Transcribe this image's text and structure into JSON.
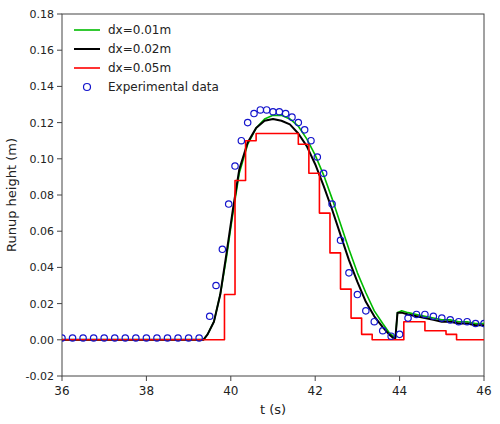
{
  "chart_data": {
    "type": "line",
    "xlabel": "t (s)",
    "ylabel": "Runup height (m)",
    "xlim": [
      36,
      46
    ],
    "ylim": [
      -0.02,
      0.18
    ],
    "xticks": [
      36,
      38,
      40,
      42,
      44,
      46
    ],
    "yticks": [
      -0.02,
      {
        "value": 0.0,
        "label": "0.00"
      },
      0.02,
      0.04,
      0.06,
      0.08,
      {
        "value": 0.1,
        "label": "0.10"
      },
      0.12,
      0.14,
      0.16,
      0.18
    ],
    "grid": false,
    "legend": "upper left",
    "series": [
      {
        "name": "dx=0.01m",
        "type": "line",
        "color": "#00bb00",
        "x": [
          36.0,
          39.35,
          39.45,
          39.6,
          39.75,
          39.9,
          40.05,
          40.2,
          40.4,
          40.6,
          40.8,
          41.0,
          41.2,
          41.4,
          41.6,
          41.8,
          42.0,
          42.2,
          42.4,
          42.6,
          42.8,
          43.0,
          43.2,
          43.4,
          43.6,
          43.75,
          43.85,
          43.9,
          43.95,
          44.05,
          44.2,
          44.4,
          44.6,
          44.8,
          45.0,
          45.2,
          45.4,
          45.6,
          45.8,
          46.0
        ],
        "values": [
          0.0,
          0.0,
          0.003,
          0.01,
          0.025,
          0.046,
          0.07,
          0.092,
          0.108,
          0.117,
          0.122,
          0.124,
          0.124,
          0.122,
          0.118,
          0.111,
          0.102,
          0.091,
          0.078,
          0.064,
          0.05,
          0.037,
          0.026,
          0.016,
          0.009,
          0.004,
          0.002,
          0.001,
          0.015,
          0.016,
          0.015,
          0.014,
          0.013,
          0.012,
          0.011,
          0.011,
          0.01,
          0.01,
          0.009,
          0.009
        ]
      },
      {
        "name": "dx=0.02m",
        "type": "line",
        "color": "#000000",
        "x": [
          36.0,
          39.35,
          39.45,
          39.6,
          39.75,
          39.9,
          40.05,
          40.2,
          40.4,
          40.6,
          40.8,
          41.0,
          41.2,
          41.4,
          41.6,
          41.8,
          42.0,
          42.2,
          42.4,
          42.6,
          42.8,
          43.0,
          43.2,
          43.4,
          43.6,
          43.75,
          43.85,
          43.9,
          43.95,
          44.05,
          44.2,
          44.4,
          44.6,
          44.8,
          45.0,
          45.2,
          45.4,
          45.6,
          45.8,
          46.0
        ],
        "values": [
          0.0,
          0.0,
          0.003,
          0.01,
          0.025,
          0.048,
          0.072,
          0.094,
          0.109,
          0.117,
          0.121,
          0.122,
          0.121,
          0.119,
          0.114,
          0.107,
          0.097,
          0.085,
          0.072,
          0.058,
          0.044,
          0.032,
          0.021,
          0.013,
          0.007,
          0.003,
          0.001,
          0.001,
          0.015,
          0.015,
          0.014,
          0.013,
          0.012,
          0.011,
          0.01,
          0.01,
          0.009,
          0.009,
          0.008,
          0.008
        ]
      },
      {
        "name": "dx=0.05m",
        "type": "step",
        "color": "#ff0000",
        "x": [
          36.0,
          39.35,
          39.85,
          40.1,
          40.35,
          40.6,
          40.85,
          41.1,
          41.35,
          41.6,
          41.85,
          42.1,
          42.35,
          42.6,
          42.85,
          43.1,
          43.35,
          43.6,
          43.85,
          44.1,
          44.35,
          44.6,
          44.85,
          45.1,
          45.35,
          45.6,
          45.85,
          46.0
        ],
        "values": [
          0.0,
          0.0,
          0.025,
          0.088,
          0.11,
          0.114,
          0.114,
          0.114,
          0.114,
          0.108,
          0.092,
          0.07,
          0.048,
          0.028,
          0.012,
          0.003,
          0.0,
          0.0,
          0.0,
          0.01,
          0.01,
          0.005,
          0.005,
          0.003,
          0.0,
          0.0,
          0.0,
          0.0
        ]
      },
      {
        "name": "Experimental data",
        "type": "scatter",
        "marker": "circle",
        "color": "#1414cc",
        "x": [
          36.0,
          36.25,
          36.5,
          36.75,
          37.0,
          37.25,
          37.5,
          37.75,
          38.0,
          38.25,
          38.5,
          38.75,
          39.0,
          39.25,
          39.5,
          39.65,
          39.8,
          39.95,
          40.1,
          40.25,
          40.4,
          40.55,
          40.7,
          40.85,
          41.0,
          41.15,
          41.3,
          41.45,
          41.6,
          41.75,
          41.9,
          42.05,
          42.2,
          42.4,
          42.6,
          42.8,
          43.0,
          43.2,
          43.4,
          43.6,
          43.8,
          44.0,
          44.2,
          44.4,
          44.6,
          44.8,
          45.0,
          45.2,
          45.4,
          45.6,
          45.8,
          46.0
        ],
        "values": [
          0.001,
          0.001,
          0.001,
          0.001,
          0.001,
          0.001,
          0.001,
          0.001,
          0.001,
          0.001,
          0.001,
          0.001,
          0.001,
          0.001,
          0.013,
          0.03,
          0.05,
          0.075,
          0.096,
          0.11,
          0.12,
          0.125,
          0.127,
          0.127,
          0.126,
          0.126,
          0.125,
          0.123,
          0.12,
          0.116,
          0.11,
          0.101,
          0.092,
          0.075,
          0.055,
          0.037,
          0.025,
          0.016,
          0.01,
          0.005,
          0.002,
          0.003,
          0.012,
          0.014,
          0.014,
          0.013,
          0.012,
          0.011,
          0.01,
          0.01,
          0.009,
          0.009
        ]
      }
    ]
  }
}
